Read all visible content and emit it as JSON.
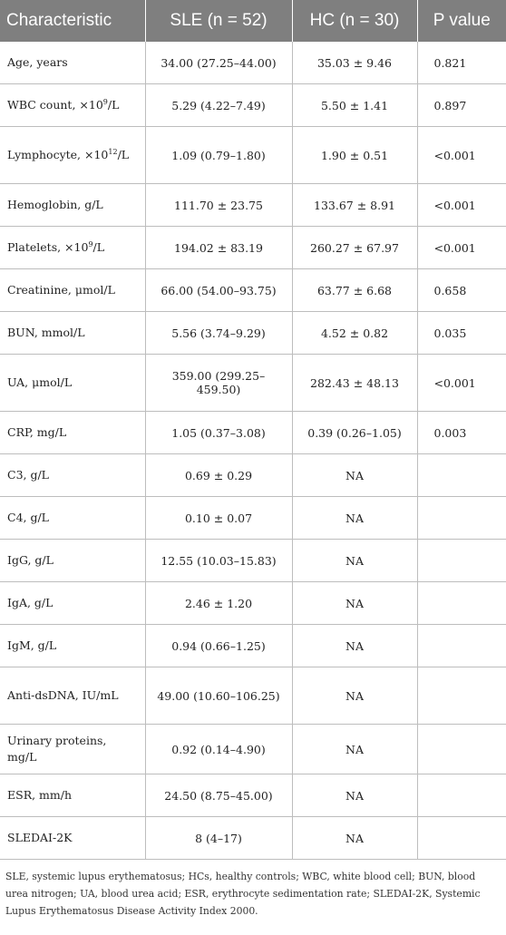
{
  "headers": [
    "Characteristic",
    "SLE (n = 52)",
    "HC (n = 30)",
    "P value"
  ],
  "rows": [
    {
      "c": "Age, years",
      "sle": "34.00 (27.25–44.00)",
      "hc": "35.03 ± 9.46",
      "p": "0.821"
    },
    {
      "c": "WBC count, ×10",
      "sup": "9",
      "c_tail": "/L",
      "sle": "5.29 (4.22–7.49)",
      "hc": "5.50 ± 1.41",
      "p": "0.897"
    },
    {
      "c": "Lymphocyte, ×10",
      "sup": "12",
      "c_tail": "/L",
      "sle": "1.09 (0.79–1.80)",
      "hc": "1.90 ± 0.51",
      "p": "<0.001"
    },
    {
      "c": "Hemoglobin, g/L",
      "sle": "111.70 ± 23.75",
      "hc": "133.67 ± 8.91",
      "p": "<0.001"
    },
    {
      "c": "Platelets, ×10",
      "sup": "9",
      "c_tail": "/L",
      "sle": "194.02 ± 83.19",
      "hc": "260.27 ± 67.97",
      "p": "<0.001"
    },
    {
      "c": "Creatinine, μmol/L",
      "sle": "66.00 (54.00–93.75)",
      "hc": "63.77 ± 6.68",
      "p": "0.658"
    },
    {
      "c": "BUN, mmol/L",
      "sle": "5.56 (3.74–9.29)",
      "hc": "4.52 ± 0.82",
      "p": "0.035"
    },
    {
      "c": "UA, μmol/L",
      "sle": "359.00 (299.25–459.50)",
      "hc": "282.43 ± 48.13",
      "p": "<0.001"
    },
    {
      "c": "CRP, mg/L",
      "sle": "1.05 (0.37–3.08)",
      "hc": "0.39 (0.26–1.05)",
      "p": "0.003"
    },
    {
      "c": "C3, g/L",
      "sle": "0.69 ± 0.29",
      "hc": "NA",
      "p": ""
    },
    {
      "c": "C4, g/L",
      "sle": "0.10 ± 0.07",
      "hc": "NA",
      "p": ""
    },
    {
      "c": "IgG, g/L",
      "sle": "12.55 (10.03–15.83)",
      "hc": "NA",
      "p": ""
    },
    {
      "c": "IgA, g/L",
      "sle": "2.46 ± 1.20",
      "hc": "NA",
      "p": ""
    },
    {
      "c": "IgM, g/L",
      "sle": "0.94 (0.66–1.25)",
      "hc": "NA",
      "p": ""
    },
    {
      "c": "Anti-dsDNA, IU/mL",
      "sle": "49.00 (10.60–106.25)",
      "hc": "NA",
      "p": ""
    },
    {
      "c": "Urinary proteins, mg/L",
      "sle": "0.92 (0.14–4.90)",
      "hc": "NA",
      "p": ""
    },
    {
      "c": "ESR, mm/h",
      "sle": "24.50 (8.75–45.00)",
      "hc": "NA",
      "p": ""
    },
    {
      "c": "SLEDAI-2K",
      "sle": "8 (4–17)",
      "hc": "NA",
      "p": ""
    }
  ],
  "footnote": "SLE, systemic lupus erythematosus; HCs, healthy controls; WBC, white blood cell; BUN, blood urea nitrogen; UA, blood urea acid; ESR, erythrocyte sedimentation rate; SLEDAI-2K, Systemic Lupus Erythematosus Disease Activity Index 2000."
}
